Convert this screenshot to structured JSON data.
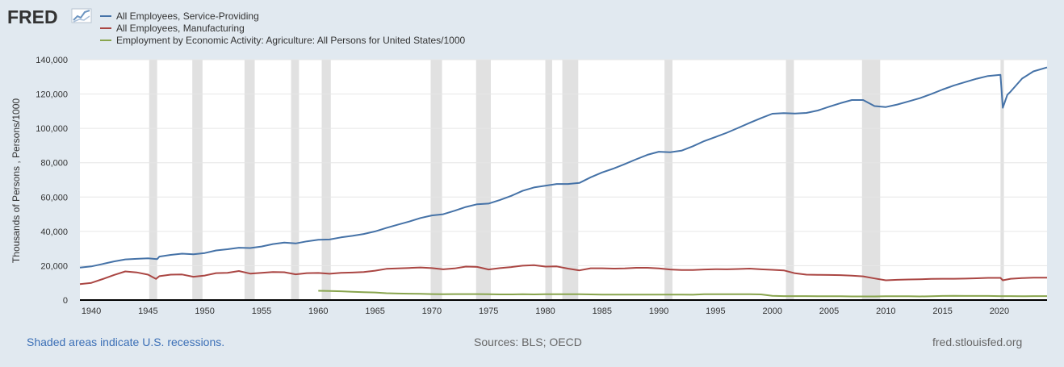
{
  "logo": {
    "text": "FRED"
  },
  "chart_data": {
    "type": "line",
    "ylabel": "Thousands of Persons , Persons/1000",
    "xlim": [
      1939,
      2024.2
    ],
    "ylim": [
      0,
      140000
    ],
    "yticks": [
      0,
      20000,
      40000,
      60000,
      80000,
      100000,
      120000,
      140000
    ],
    "ytick_labels": [
      "0",
      "20,000",
      "40,000",
      "60,000",
      "80,000",
      "100,000",
      "120,000",
      "140,000"
    ],
    "xticks": [
      1940,
      1945,
      1950,
      1955,
      1960,
      1965,
      1970,
      1975,
      1980,
      1985,
      1990,
      1995,
      2000,
      2005,
      2010,
      2015,
      2020
    ],
    "xtick_labels": [
      "1940",
      "1945",
      "1950",
      "1955",
      "1960",
      "1965",
      "1970",
      "1975",
      "1980",
      "1985",
      "1990",
      "1995",
      "2000",
      "2005",
      "2010",
      "2015",
      "2020"
    ],
    "grid": true,
    "recessions": [
      [
        1945.1,
        1945.8
      ],
      [
        1948.9,
        1949.8
      ],
      [
        1953.5,
        1954.4
      ],
      [
        1957.6,
        1958.3
      ],
      [
        1960.3,
        1961.1
      ],
      [
        1969.9,
        1970.9
      ],
      [
        1973.9,
        1975.2
      ],
      [
        1980.0,
        1980.6
      ],
      [
        1981.5,
        1982.9
      ],
      [
        1990.5,
        1991.2
      ],
      [
        2001.2,
        2001.9
      ],
      [
        2007.9,
        2009.5
      ],
      [
        2020.1,
        2020.4
      ]
    ],
    "series": [
      {
        "name": "All Employees, Service-Providing",
        "color": "#4572a7",
        "points": [
          [
            1939,
            18900
          ],
          [
            1940,
            19600
          ],
          [
            1941,
            21000
          ],
          [
            1942,
            22500
          ],
          [
            1943,
            23700
          ],
          [
            1944,
            24000
          ],
          [
            1945,
            24300
          ],
          [
            1945.8,
            23800
          ],
          [
            1946,
            25300
          ],
          [
            1947,
            26300
          ],
          [
            1948,
            27000
          ],
          [
            1949,
            26700
          ],
          [
            1950,
            27400
          ],
          [
            1951,
            28900
          ],
          [
            1952,
            29600
          ],
          [
            1953,
            30500
          ],
          [
            1954,
            30300
          ],
          [
            1955,
            31200
          ],
          [
            1956,
            32600
          ],
          [
            1957,
            33500
          ],
          [
            1958,
            33000
          ],
          [
            1959,
            34200
          ],
          [
            1960,
            35100
          ],
          [
            1961,
            35300
          ],
          [
            1962,
            36500
          ],
          [
            1963,
            37400
          ],
          [
            1964,
            38500
          ],
          [
            1965,
            40000
          ],
          [
            1966,
            42000
          ],
          [
            1967,
            43900
          ],
          [
            1968,
            45700
          ],
          [
            1969,
            47800
          ],
          [
            1970,
            49300
          ],
          [
            1971,
            50000
          ],
          [
            1972,
            52000
          ],
          [
            1973,
            54200
          ],
          [
            1974,
            55800
          ],
          [
            1975,
            56200
          ],
          [
            1976,
            58300
          ],
          [
            1977,
            60700
          ],
          [
            1978,
            63600
          ],
          [
            1979,
            65600
          ],
          [
            1980,
            66600
          ],
          [
            1981,
            67600
          ],
          [
            1982,
            67600
          ],
          [
            1983,
            68200
          ],
          [
            1984,
            71500
          ],
          [
            1985,
            74300
          ],
          [
            1986,
            76600
          ],
          [
            1987,
            79200
          ],
          [
            1988,
            82000
          ],
          [
            1989,
            84600
          ],
          [
            1990,
            86400
          ],
          [
            1991,
            86100
          ],
          [
            1992,
            87000
          ],
          [
            1993,
            89600
          ],
          [
            1994,
            92600
          ],
          [
            1995,
            95000
          ],
          [
            1996,
            97500
          ],
          [
            1997,
            100300
          ],
          [
            1998,
            103200
          ],
          [
            1999,
            106000
          ],
          [
            2000,
            108500
          ],
          [
            2001,
            108900
          ],
          [
            2002,
            108600
          ],
          [
            2003,
            109000
          ],
          [
            2004,
            110400
          ],
          [
            2005,
            112600
          ],
          [
            2006,
            114700
          ],
          [
            2007,
            116500
          ],
          [
            2008,
            116500
          ],
          [
            2009,
            113000
          ],
          [
            2010,
            112400
          ],
          [
            2011,
            113900
          ],
          [
            2012,
            115700
          ],
          [
            2013,
            117600
          ],
          [
            2014,
            120000
          ],
          [
            2015,
            122600
          ],
          [
            2016,
            125000
          ],
          [
            2017,
            127000
          ],
          [
            2018,
            128900
          ],
          [
            2019,
            130500
          ],
          [
            2020.1,
            131200
          ],
          [
            2020.3,
            112000
          ],
          [
            2020.7,
            119500
          ],
          [
            2021,
            121500
          ],
          [
            2022,
            129000
          ],
          [
            2023,
            133200
          ],
          [
            2024.2,
            135500
          ]
        ]
      },
      {
        "name": "All Employees, Manufacturing",
        "color": "#aa4643",
        "points": [
          [
            1939,
            9300
          ],
          [
            1940,
            10000
          ],
          [
            1941,
            12200
          ],
          [
            1942,
            14600
          ],
          [
            1943,
            16700
          ],
          [
            1944,
            16100
          ],
          [
            1945,
            14800
          ],
          [
            1945.7,
            12300
          ],
          [
            1946,
            13900
          ],
          [
            1947,
            14800
          ],
          [
            1948,
            14900
          ],
          [
            1949,
            13600
          ],
          [
            1950,
            14300
          ],
          [
            1951,
            15700
          ],
          [
            1952,
            15900
          ],
          [
            1953,
            16900
          ],
          [
            1954,
            15400
          ],
          [
            1955,
            15900
          ],
          [
            1956,
            16300
          ],
          [
            1957,
            16200
          ],
          [
            1958,
            15000
          ],
          [
            1959,
            15700
          ],
          [
            1960,
            15800
          ],
          [
            1961,
            15300
          ],
          [
            1962,
            15900
          ],
          [
            1963,
            16000
          ],
          [
            1964,
            16300
          ],
          [
            1965,
            17100
          ],
          [
            1966,
            18200
          ],
          [
            1967,
            18400
          ],
          [
            1968,
            18700
          ],
          [
            1969,
            19000
          ],
          [
            1970,
            18600
          ],
          [
            1971,
            17900
          ],
          [
            1972,
            18400
          ],
          [
            1973,
            19500
          ],
          [
            1974,
            19300
          ],
          [
            1975,
            17800
          ],
          [
            1976,
            18600
          ],
          [
            1977,
            19200
          ],
          [
            1978,
            20000
          ],
          [
            1979,
            20300
          ],
          [
            1980,
            19500
          ],
          [
            1981,
            19600
          ],
          [
            1982,
            18300
          ],
          [
            1983,
            17300
          ],
          [
            1984,
            18500
          ],
          [
            1985,
            18500
          ],
          [
            1986,
            18300
          ],
          [
            1987,
            18400
          ],
          [
            1988,
            18800
          ],
          [
            1989,
            18800
          ],
          [
            1990,
            18400
          ],
          [
            1991,
            17800
          ],
          [
            1992,
            17500
          ],
          [
            1993,
            17500
          ],
          [
            1994,
            17800
          ],
          [
            1995,
            18000
          ],
          [
            1996,
            17900
          ],
          [
            1997,
            18100
          ],
          [
            1998,
            18300
          ],
          [
            1999,
            17900
          ],
          [
            2000,
            17600
          ],
          [
            2001,
            17300
          ],
          [
            2002,
            15600
          ],
          [
            2003,
            14800
          ],
          [
            2004,
            14700
          ],
          [
            2005,
            14600
          ],
          [
            2006,
            14500
          ],
          [
            2007,
            14200
          ],
          [
            2008,
            13800
          ],
          [
            2009,
            12600
          ],
          [
            2010,
            11500
          ],
          [
            2011,
            11800
          ],
          [
            2012,
            12000
          ],
          [
            2013,
            12100
          ],
          [
            2014,
            12300
          ],
          [
            2015,
            12400
          ],
          [
            2016,
            12400
          ],
          [
            2017,
            12500
          ],
          [
            2018,
            12700
          ],
          [
            2019,
            12900
          ],
          [
            2020.1,
            12900
          ],
          [
            2020.3,
            11500
          ],
          [
            2021,
            12400
          ],
          [
            2022,
            12800
          ],
          [
            2023,
            13000
          ],
          [
            2024.2,
            13000
          ]
        ]
      },
      {
        "name": "Employment by Economic Activity: Agriculture: All Persons for United States/1000",
        "color": "#89a54e",
        "points": [
          [
            1960,
            5400
          ],
          [
            1961,
            5300
          ],
          [
            1962,
            5100
          ],
          [
            1963,
            4800
          ],
          [
            1964,
            4600
          ],
          [
            1965,
            4400
          ],
          [
            1966,
            4000
          ],
          [
            1967,
            3800
          ],
          [
            1968,
            3700
          ],
          [
            1969,
            3600
          ],
          [
            1970,
            3500
          ],
          [
            1971,
            3400
          ],
          [
            1972,
            3500
          ],
          [
            1973,
            3500
          ],
          [
            1974,
            3500
          ],
          [
            1975,
            3400
          ],
          [
            1976,
            3300
          ],
          [
            1977,
            3300
          ],
          [
            1978,
            3400
          ],
          [
            1979,
            3300
          ],
          [
            1980,
            3400
          ],
          [
            1981,
            3400
          ],
          [
            1982,
            3400
          ],
          [
            1983,
            3400
          ],
          [
            1984,
            3300
          ],
          [
            1985,
            3200
          ],
          [
            1986,
            3200
          ],
          [
            1987,
            3200
          ],
          [
            1988,
            3200
          ],
          [
            1989,
            3200
          ],
          [
            1990,
            3200
          ],
          [
            1991,
            3200
          ],
          [
            1992,
            3200
          ],
          [
            1993,
            3100
          ],
          [
            1994,
            3400
          ],
          [
            1995,
            3400
          ],
          [
            1996,
            3400
          ],
          [
            1997,
            3400
          ],
          [
            1998,
            3400
          ],
          [
            1999,
            3300
          ],
          [
            2000,
            2500
          ],
          [
            2001,
            2300
          ],
          [
            2002,
            2300
          ],
          [
            2003,
            2300
          ],
          [
            2004,
            2200
          ],
          [
            2005,
            2200
          ],
          [
            2006,
            2200
          ],
          [
            2007,
            2100
          ],
          [
            2008,
            2100
          ],
          [
            2009,
            2100
          ],
          [
            2010,
            2200
          ],
          [
            2011,
            2200
          ],
          [
            2012,
            2200
          ],
          [
            2013,
            2100
          ],
          [
            2014,
            2200
          ],
          [
            2015,
            2400
          ],
          [
            2016,
            2500
          ],
          [
            2017,
            2400
          ],
          [
            2018,
            2400
          ],
          [
            2019,
            2400
          ],
          [
            2020,
            2300
          ],
          [
            2021,
            2300
          ],
          [
            2022,
            2200
          ],
          [
            2023,
            2300
          ],
          [
            2024.2,
            2300
          ]
        ]
      }
    ]
  },
  "footer": {
    "left": "Shaded areas indicate U.S. recessions.",
    "center": "Sources: BLS; OECD",
    "right": "fred.stlouisfed.org"
  }
}
